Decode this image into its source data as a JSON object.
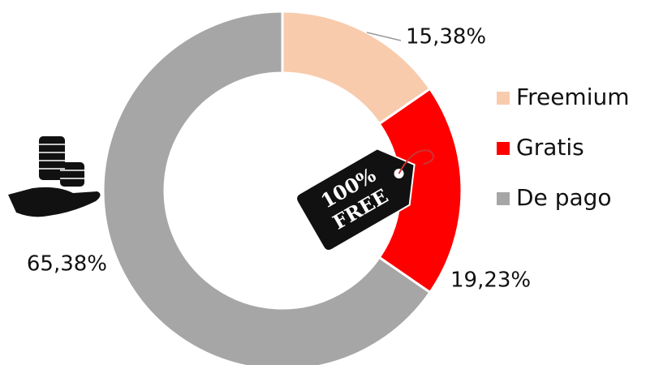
{
  "chart_data": {
    "type": "donut",
    "categories": [
      "Freemium",
      "Gratis",
      "De pago"
    ],
    "values": [
      15.38,
      19.23,
      65.38
    ],
    "value_labels": [
      "15,38%",
      "19,23%",
      "65,38%"
    ],
    "colors": [
      "#f8cbad",
      "#ff0000",
      "#a6a6a6"
    ],
    "legend": "right",
    "annotations": [
      "100%",
      "FREE"
    ]
  }
}
